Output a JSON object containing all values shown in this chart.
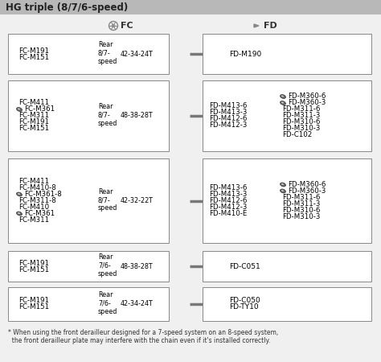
{
  "title": "HG triple (8/7/6-speed)",
  "title_bg": "#b8b8b8",
  "bg_color": "#f0f0f0",
  "box_bg": "#ffffff",
  "box_edge": "#888888",
  "footnote_line1": "* When using the front derailleur designed for a 7-speed system on an 8-speed system,",
  "footnote_line2": "  the front derailleur plate may interfere with the chain even if it's installed correctly.",
  "rows": [
    {
      "fc_lines": [
        "FC-M191",
        "FC-M151"
      ],
      "fc_has_icon": [
        false,
        false
      ],
      "rear": "Rear\n8/7-\nspeed",
      "chainring": "42-34-24T",
      "fd_col1": [
        "FD-M190"
      ],
      "fd_col1_icon": [
        false
      ],
      "fd_col2": [],
      "fd_col2_icon": []
    },
    {
      "fc_lines": [
        "FC-M411",
        "FC-M361",
        "FC-M311",
        "FC-M191",
        "FC-M151"
      ],
      "fc_has_icon": [
        false,
        true,
        false,
        false,
        false
      ],
      "rear": "Rear\n8/7-\nspeed",
      "chainring": "48-38-28T",
      "fd_col1": [
        "FD-M413-6",
        "FD-M413-3",
        "FD-M412-6",
        "FD-M412-3"
      ],
      "fd_col1_icon": [
        false,
        false,
        false,
        false
      ],
      "fd_col2": [
        "FD-M360-6",
        "FD-M360-3",
        "FD-M311-6",
        "FD-M311-3",
        "FD-M310-6",
        "FD-M310-3",
        "FD-C102"
      ],
      "fd_col2_icon": [
        true,
        true,
        false,
        false,
        false,
        false,
        false
      ]
    },
    {
      "fc_lines": [
        "FC-M411",
        "FC-M410-8",
        "FC-M361-8",
        "FC-M311-8",
        "FC-M410",
        "FC-M361",
        "FC-M311"
      ],
      "fc_has_icon": [
        false,
        false,
        true,
        false,
        false,
        true,
        false
      ],
      "rear": "Rear\n8/7-\nspeed",
      "chainring": "42-32-22T",
      "fd_col1": [
        "FD-M413-6",
        "FD-M413-3",
        "FD-M412-6",
        "FD-M412-3",
        "FD-M410-E"
      ],
      "fd_col1_icon": [
        false,
        false,
        false,
        false,
        false
      ],
      "fd_col2": [
        "FD-M360-6",
        "FD-M360-3",
        "FD-M311-6",
        "FD-M311-3",
        "FD-M310-6",
        "FD-M310-3"
      ],
      "fd_col2_icon": [
        true,
        true,
        false,
        false,
        false,
        false
      ]
    },
    {
      "fc_lines": [
        "FC-M191",
        "FC-M151"
      ],
      "fc_has_icon": [
        false,
        false
      ],
      "rear": "Rear\n7/6-\nspeed",
      "chainring": "48-38-28T",
      "fd_col1": [
        "FD-C051"
      ],
      "fd_col1_icon": [
        false
      ],
      "fd_col2": [],
      "fd_col2_icon": []
    },
    {
      "fc_lines": [
        "FC-M191",
        "FC-M151"
      ],
      "fc_has_icon": [
        false,
        false
      ],
      "rear": "Rear\n7/6-\nspeed",
      "chainring": "42-34-24T",
      "fd_col1": [
        "FD-C050",
        "FD-TY10"
      ],
      "fd_col1_icon": [
        false,
        false
      ],
      "fd_col2": [],
      "fd_col2_icon": []
    }
  ]
}
